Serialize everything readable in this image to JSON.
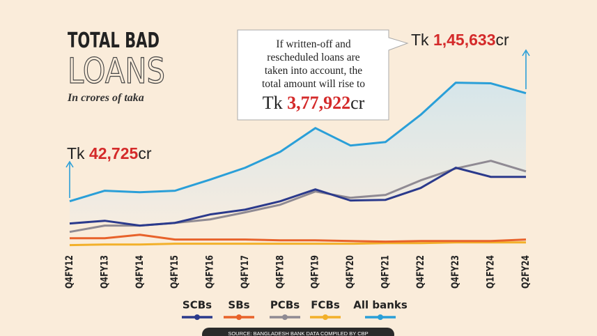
{
  "chart_data": {
    "type": "line",
    "title": "TOTAL BAD",
    "title_line2": "LOANS",
    "subtitle": "In crores of taka",
    "categories": [
      "Q4FY12",
      "Q4FY13",
      "Q4FY14",
      "Q4FY15",
      "Q4FY16",
      "Q4FY17",
      "Q4FY18",
      "Q4FY19",
      "Q4FY20",
      "Q4FY21",
      "Q4FY22",
      "Q4FY23",
      "Q1FY24",
      "Q2FY24"
    ],
    "ylim": [
      0,
      160000
    ],
    "series": [
      {
        "name": "SCBs",
        "color": "#2b3a8c",
        "values": [
          21500,
          24100,
          19500,
          22100,
          30100,
          34700,
          42700,
          54000,
          43400,
          44000,
          55300,
          74600,
          65900,
          65900
        ]
      },
      {
        "name": "SBs",
        "color": "#e8622a",
        "values": [
          7500,
          7500,
          10800,
          6200,
          6200,
          6200,
          5500,
          5500,
          4800,
          4200,
          4800,
          4800,
          4800,
          6200
        ]
      },
      {
        "name": "PCBs",
        "color": "#8f8a93",
        "values": [
          13500,
          19500,
          19500,
          22100,
          25400,
          32100,
          39400,
          52000,
          46000,
          48700,
          62600,
          73900,
          81200,
          71200
        ]
      },
      {
        "name": "FCBs",
        "color": "#f2b02a",
        "values": [
          900,
          1500,
          1500,
          2200,
          2200,
          2200,
          2200,
          2200,
          2200,
          2800,
          2800,
          3500,
          3500,
          3500
        ]
      },
      {
        "name": "All banks",
        "color": "#2a9fd8",
        "values": [
          42725,
          52700,
          51300,
          52700,
          63300,
          74600,
          89800,
          112400,
          95800,
          99100,
          125000,
          155600,
          155000,
          145633
        ]
      }
    ],
    "annotations": [
      {
        "prefix": "Tk ",
        "value": "42,725",
        "suffix": "cr"
      },
      {
        "prefix": "Tk ",
        "value": "1,45,633",
        "suffix": "cr"
      }
    ],
    "callout": {
      "lines": [
        "If written-off and",
        "rescheduled loans are",
        "taken into account, the",
        "total amount will rise to"
      ],
      "prefix": "Tk ",
      "value": "3,77,922",
      "suffix": "cr"
    },
    "source": "SOURCE: BANGLADESH BANK DATA COMPILED BY CBP"
  }
}
